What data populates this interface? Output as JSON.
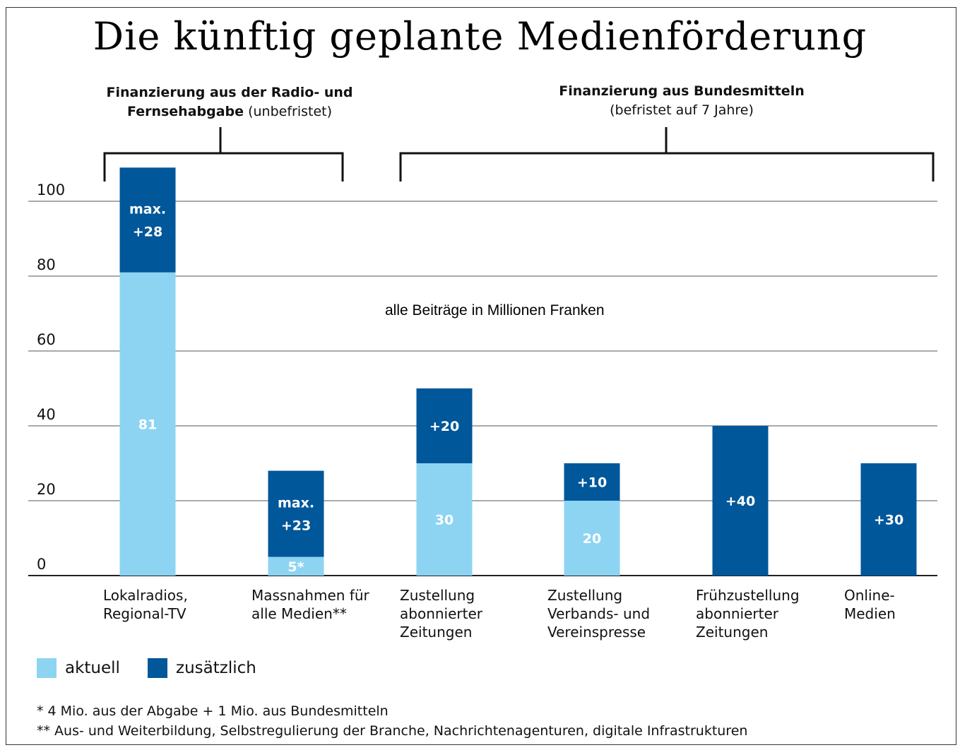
{
  "title": "Die künftig geplante Medienförderung",
  "groups": [
    {
      "bold": "Finanzierung aus der Radio- und",
      "bold2": "Fernsehabgabe",
      "normal2": " (unbefristet)"
    },
    {
      "bold": "Finanzierung aus Bundesmitteln",
      "normal2": "(befristet auf 7 Jahre)"
    }
  ],
  "subtitle": "alle Beiträge in Millionen Franken",
  "legend": [
    {
      "label": "aktuell",
      "color": "#8dd4f3"
    },
    {
      "label": "zusätzlich",
      "color": "#00579a"
    }
  ],
  "footnotes": [
    "* 4 Mio. aus der Abgabe + 1 Mio. aus Bundesmitteln",
    "** Aus- und Weiterbildung, Selbstregulierung der Branche, Nachrichtenagenturen, digitale Infrastrukturen"
  ],
  "chart_data": {
    "type": "bar",
    "stacked": true,
    "ylim": [
      0,
      100
    ],
    "yticks": [
      0,
      20,
      40,
      60,
      80,
      100
    ],
    "grid": true,
    "categories": [
      [
        "Lokalradios,",
        "Regional-TV"
      ],
      [
        "Massnahmen für",
        "alle Medien**"
      ],
      [
        "Zustellung",
        "abonnierter",
        "Zeitungen"
      ],
      [
        "Zustellung",
        "Verbands- und",
        "Vereinspresse"
      ],
      [
        "Frühzustellung",
        "abonnierter",
        "Zeitungen"
      ],
      [
        "Online-",
        "Medien"
      ]
    ],
    "series": [
      {
        "name": "aktuell",
        "color": "#8dd4f3",
        "values": [
          81,
          5,
          30,
          20,
          0,
          0
        ],
        "labels": [
          [
            "81"
          ],
          [
            "5*"
          ],
          [
            "30"
          ],
          [
            "20"
          ],
          [],
          []
        ]
      },
      {
        "name": "zusätzlich",
        "color": "#00579a",
        "values": [
          28,
          23,
          20,
          10,
          40,
          30
        ],
        "labels": [
          [
            "max.",
            "+28"
          ],
          [
            "max.",
            "+23"
          ],
          [
            "+20"
          ],
          [
            "+10"
          ],
          [
            "+40"
          ],
          [
            "+30"
          ]
        ]
      }
    ]
  }
}
